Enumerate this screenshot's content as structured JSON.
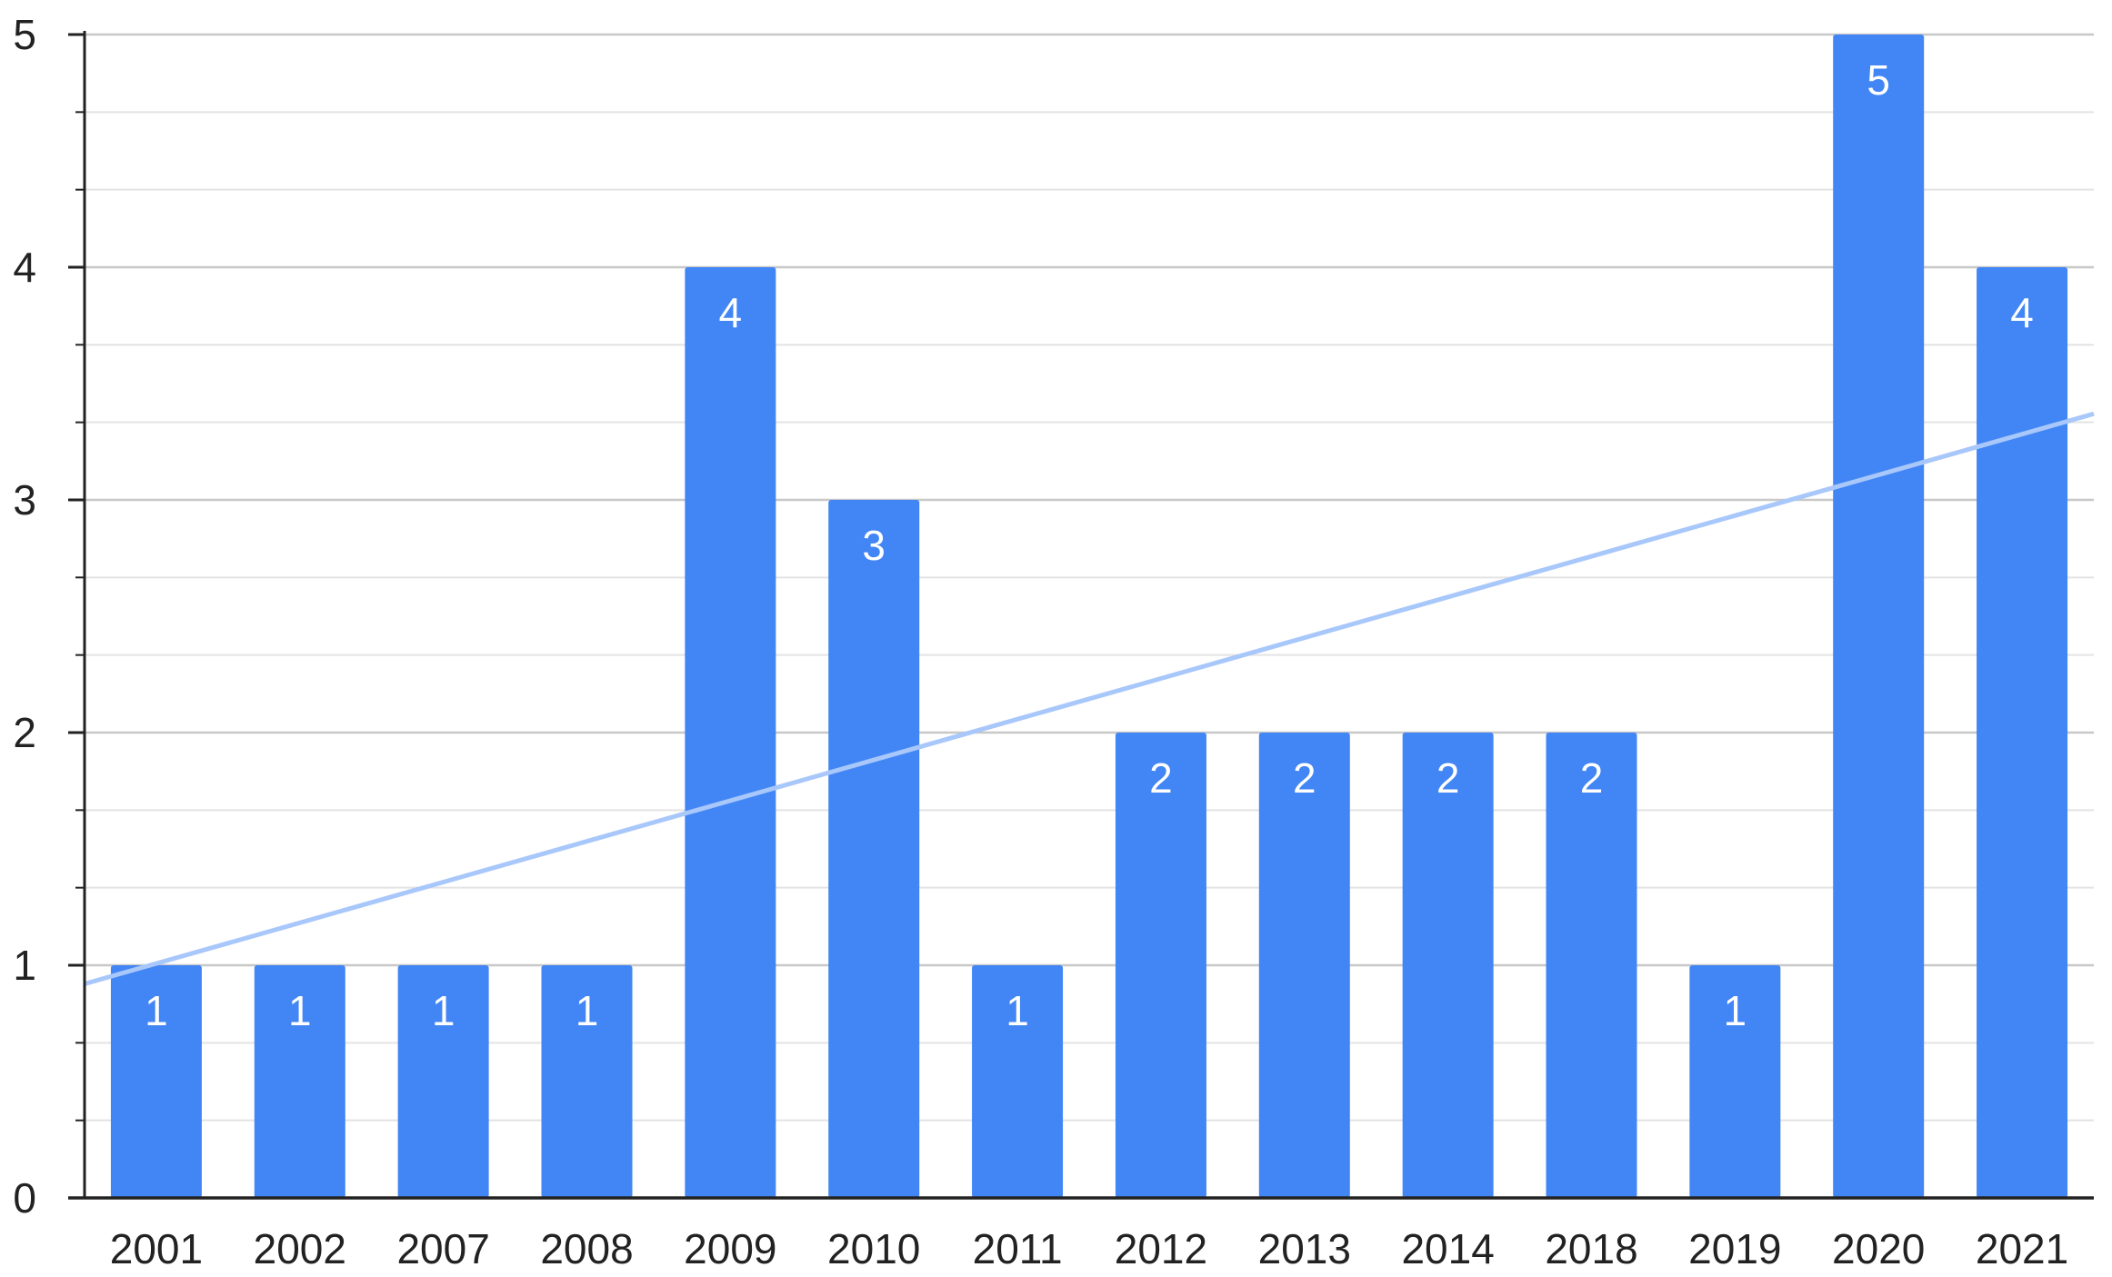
{
  "chart_data": {
    "type": "bar",
    "title": "",
    "xlabel": "",
    "ylabel": "",
    "categories": [
      "2001",
      "2002",
      "2007",
      "2008",
      "2009",
      "2010",
      "2011",
      "2012",
      "2013",
      "2014",
      "2018",
      "2019",
      "2020",
      "2021"
    ],
    "values": [
      1,
      1,
      1,
      1,
      4,
      3,
      1,
      2,
      2,
      2,
      2,
      1,
      5,
      4
    ],
    "data_labels": [
      "1",
      "1",
      "1",
      "1",
      "4",
      "3",
      "1",
      "2",
      "2",
      "2",
      "2",
      "1",
      "5",
      "4"
    ],
    "ylim": [
      0,
      5
    ],
    "y_ticks": [
      0,
      1,
      2,
      3,
      4,
      5
    ],
    "y_tick_labels": [
      "0",
      "1",
      "2",
      "3",
      "4",
      "5"
    ],
    "y_minor_step": 0.333333,
    "grid": true,
    "legend": "none",
    "trendline": {
      "type": "linear",
      "start_value": 0.92,
      "end_value": 3.37
    },
    "colors": {
      "bar": "#4285f4",
      "trendline": "#a8c7fa",
      "grid_major": "#c8c8c8",
      "grid_minor": "#e3e3e3",
      "axis": "#222222",
      "data_label": "#ffffff"
    }
  }
}
